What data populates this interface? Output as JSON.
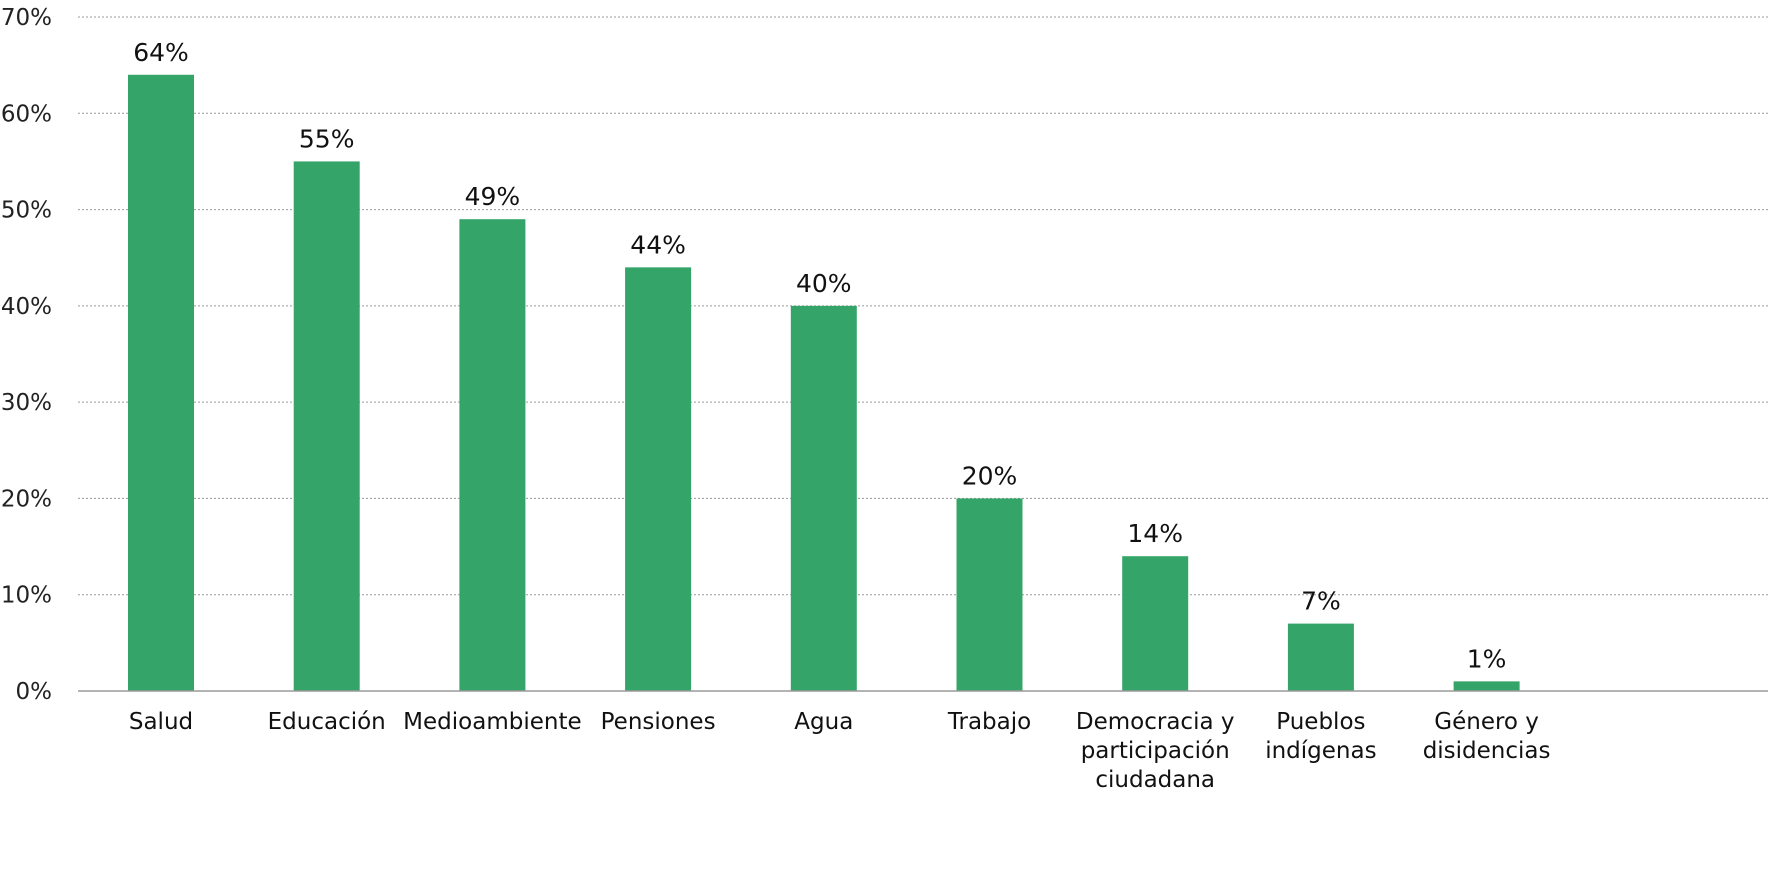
{
  "chart_data": {
    "type": "bar",
    "categories": [
      [
        "Salud"
      ],
      [
        "Educación"
      ],
      [
        "Medioambiente"
      ],
      [
        "Pensiones"
      ],
      [
        "Agua"
      ],
      [
        "Trabajo"
      ],
      [
        "Democracia y",
        "participación",
        "ciudadana"
      ],
      [
        "Pueblos",
        "indígenas"
      ],
      [
        "Género y",
        "disidencias"
      ]
    ],
    "values": [
      64,
      55,
      49,
      44,
      40,
      20,
      14,
      7,
      1
    ],
    "value_labels": [
      "64%",
      "55%",
      "49%",
      "44%",
      "40%",
      "20%",
      "14%",
      "7%",
      "1%"
    ],
    "y_ticks": [
      0,
      10,
      20,
      30,
      40,
      50,
      60,
      70
    ],
    "y_tick_labels": [
      "0%",
      "10%",
      "20%",
      "30%",
      "40%",
      "50%",
      "60%",
      "70%"
    ],
    "ylim": [
      0,
      70
    ],
    "grid": true,
    "grid_style": "dotted",
    "legend": "none",
    "bar_color": "#34a469",
    "gridline_color": "#9a9a9a",
    "axis_color": "#9a9a9a"
  }
}
